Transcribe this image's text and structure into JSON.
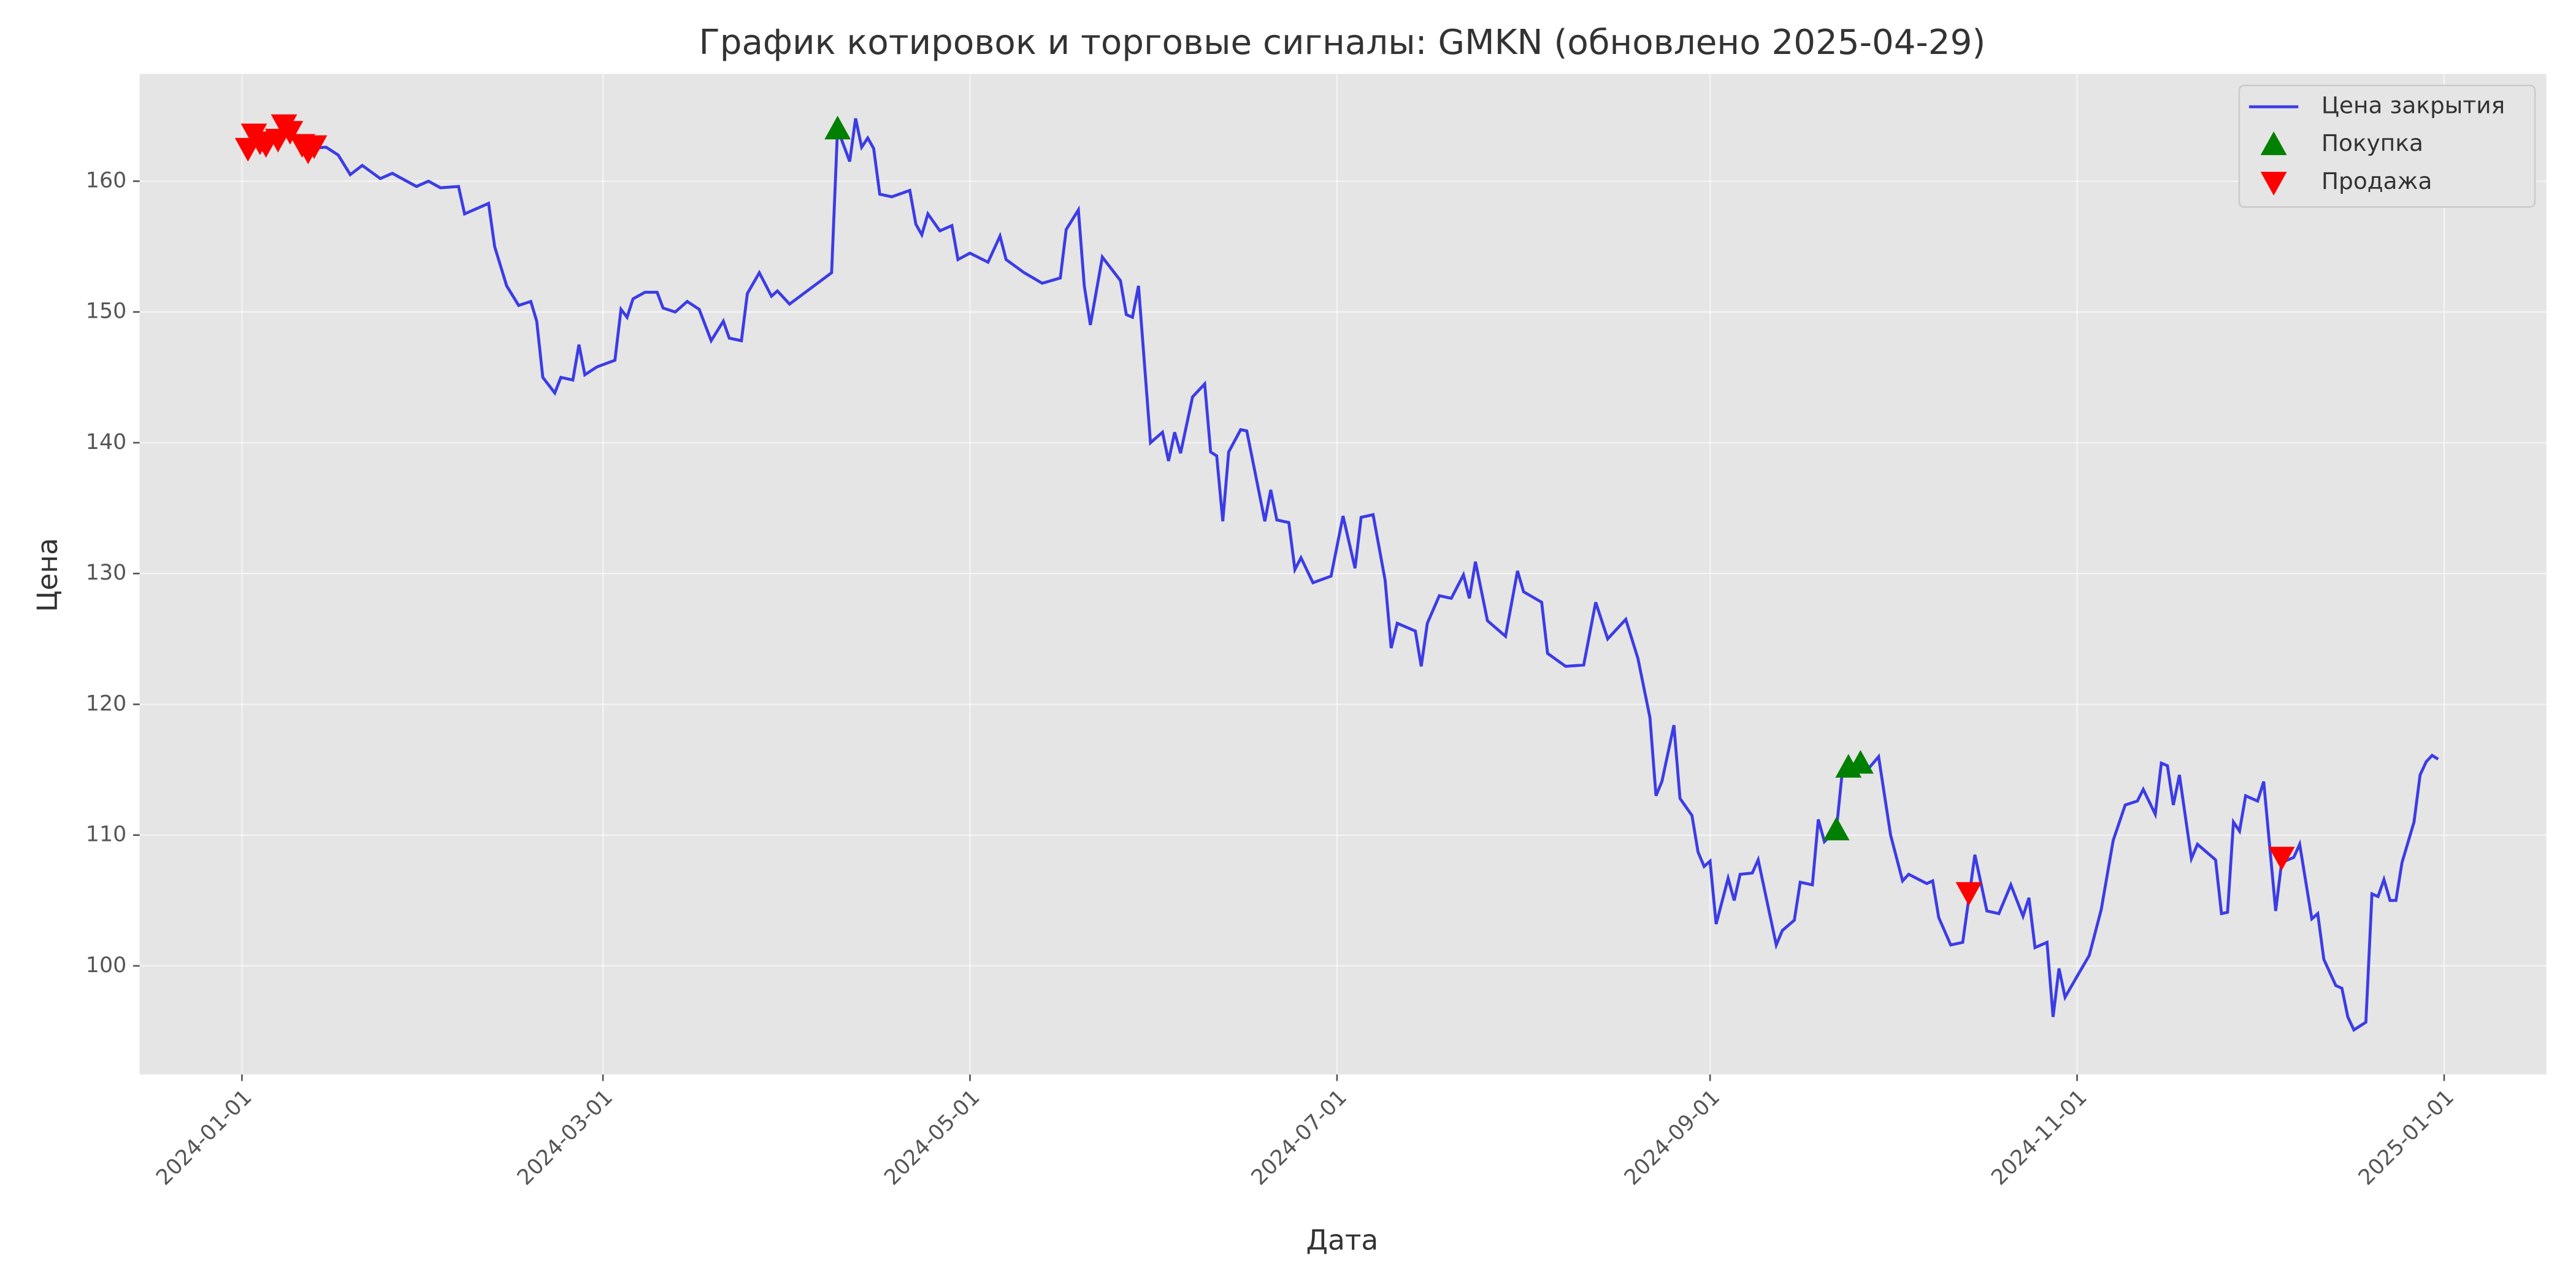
{
  "chart_data": {
    "type": "line",
    "title": "График котировок и торговые сигналы: GMKN (обновлено 2025-04-29)",
    "xlabel": "Дата",
    "ylabel": "Цена",
    "xlim": [
      "2023-12-15",
      "2025-01-18"
    ],
    "xticks": [
      "2024-01-01",
      "2024-03-01",
      "2024-05-01",
      "2024-07-01",
      "2024-09-01",
      "2024-11-01",
      "2025-01-01"
    ],
    "ylim": [
      91.7,
      168.2
    ],
    "yticks": [
      100,
      110,
      120,
      130,
      140,
      150,
      160
    ],
    "grid": true,
    "legend": "upper right",
    "x": [
      "2024-01-02",
      "2024-01-03",
      "2024-01-04",
      "2024-01-05",
      "2024-01-08",
      "2024-01-09",
      "2024-01-11",
      "2024-01-12",
      "2024-01-15",
      "2024-01-17",
      "2024-01-19",
      "2024-01-21",
      "2024-01-24",
      "2024-01-26",
      "2024-01-30",
      "2024-02-01",
      "2024-02-03",
      "2024-02-06",
      "2024-02-07",
      "2024-02-11",
      "2024-02-12",
      "2024-02-14",
      "2024-02-16",
      "2024-02-18",
      "2024-02-19",
      "2024-02-20",
      "2024-02-22",
      "2024-02-23",
      "2024-02-25",
      "2024-02-26",
      "2024-02-27",
      "2024-02-29",
      "2024-03-03",
      "2024-03-04",
      "2024-03-05",
      "2024-03-06",
      "2024-03-08",
      "2024-03-10",
      "2024-03-11",
      "2024-03-13",
      "2024-03-15",
      "2024-03-17",
      "2024-03-19",
      "2024-03-21",
      "2024-03-22",
      "2024-03-24",
      "2024-03-25",
      "2024-03-27",
      "2024-03-29",
      "2024-03-30",
      "2024-04-01",
      "2024-04-08",
      "2024-04-09",
      "2024-04-11",
      "2024-04-12",
      "2024-04-13",
      "2024-04-14",
      "2024-04-15",
      "2024-04-16",
      "2024-04-18",
      "2024-04-21",
      "2024-04-22",
      "2024-04-23",
      "2024-04-24",
      "2024-04-26",
      "2024-04-28",
      "2024-04-29",
      "2024-05-01",
      "2024-05-04",
      "2024-05-06",
      "2024-05-07",
      "2024-05-10",
      "2024-05-13",
      "2024-05-16",
      "2024-05-17",
      "2024-05-19",
      "2024-05-20",
      "2024-05-21",
      "2024-05-23",
      "2024-05-26",
      "2024-05-27",
      "2024-05-28",
      "2024-05-29",
      "2024-05-31",
      "2024-06-02",
      "2024-06-03",
      "2024-06-04",
      "2024-06-05",
      "2024-06-07",
      "2024-06-09",
      "2024-06-10",
      "2024-06-11",
      "2024-06-12",
      "2024-06-13",
      "2024-06-15",
      "2024-06-16",
      "2024-06-19",
      "2024-06-20",
      "2024-06-21",
      "2024-06-23",
      "2024-06-24",
      "2024-06-25",
      "2024-06-27",
      "2024-06-30",
      "2024-07-02",
      "2024-07-04",
      "2024-07-05",
      "2024-07-07",
      "2024-07-09",
      "2024-07-10",
      "2024-07-11",
      "2024-07-14",
      "2024-07-15",
      "2024-07-16",
      "2024-07-18",
      "2024-07-20",
      "2024-07-22",
      "2024-07-23",
      "2024-07-24",
      "2024-07-26",
      "2024-07-29",
      "2024-07-31",
      "2024-08-01",
      "2024-08-04",
      "2024-08-05",
      "2024-08-08",
      "2024-08-11",
      "2024-08-13",
      "2024-08-15",
      "2024-08-18",
      "2024-08-20",
      "2024-08-22",
      "2024-08-23",
      "2024-08-24",
      "2024-08-26",
      "2024-08-27",
      "2024-08-29",
      "2024-08-30",
      "2024-08-31",
      "2024-09-01",
      "2024-09-02",
      "2024-09-04",
      "2024-09-05",
      "2024-09-06",
      "2024-09-08",
      "2024-09-09",
      "2024-09-12",
      "2024-09-13",
      "2024-09-15",
      "2024-09-16",
      "2024-09-18",
      "2024-09-19",
      "2024-09-20",
      "2024-09-22",
      "2024-09-23",
      "2024-09-25",
      "2024-09-27",
      "2024-09-29",
      "2024-10-01",
      "2024-10-03",
      "2024-10-04",
      "2024-10-07",
      "2024-10-08",
      "2024-10-09",
      "2024-10-11",
      "2024-10-13",
      "2024-10-15",
      "2024-10-17",
      "2024-10-19",
      "2024-10-21",
      "2024-10-23",
      "2024-10-24",
      "2024-10-25",
      "2024-10-27",
      "2024-10-28",
      "2024-10-29",
      "2024-10-30",
      "2024-11-01",
      "2024-11-03",
      "2024-11-05",
      "2024-11-07",
      "2024-11-09",
      "2024-11-11",
      "2024-11-12",
      "2024-11-14",
      "2024-11-15",
      "2024-11-16",
      "2024-11-17",
      "2024-11-18",
      "2024-11-20",
      "2024-11-21",
      "2024-11-24",
      "2024-11-25",
      "2024-11-26",
      "2024-11-27",
      "2024-11-28",
      "2024-11-29",
      "2024-12-01",
      "2024-12-02",
      "2024-12-04",
      "2024-12-05",
      "2024-12-07",
      "2024-12-08",
      "2024-12-10",
      "2024-12-11",
      "2024-12-12",
      "2024-12-14",
      "2024-12-15",
      "2024-12-16",
      "2024-12-17",
      "2024-12-19",
      "2024-12-20",
      "2024-12-21",
      "2024-12-22",
      "2024-12-23",
      "2024-12-24",
      "2024-12-25",
      "2024-12-27",
      "2024-12-28",
      "2024-12-29",
      "2024-12-30",
      "2024-12-31"
    ],
    "series": [
      {
        "name": "Цена закрытия",
        "color": "#3c3ce6",
        "values": [
          162.5,
          163.6,
          163,
          162.8,
          164,
          163.8,
          162.8,
          162.5,
          162.6,
          162,
          160.5,
          161.2,
          160.2,
          160.6,
          159.6,
          160,
          159.5,
          159.6,
          157.5,
          158.3,
          155,
          152,
          150.5,
          150.8,
          149.3,
          145,
          143.8,
          145,
          144.8,
          147.5,
          145.2,
          145.8,
          146.3,
          150.2,
          149.6,
          151,
          151.5,
          151.5,
          150.3,
          150,
          150.8,
          150.2,
          147.8,
          149.3,
          148,
          147.8,
          151.4,
          153,
          151.2,
          151.6,
          150.6,
          153,
          164,
          161.5,
          164.8,
          162.6,
          163.3,
          162.5,
          159,
          158.8,
          159.3,
          156.7,
          155.9,
          157.5,
          156.2,
          156.6,
          154,
          154.5,
          153.8,
          155.8,
          154,
          153,
          152.2,
          152.6,
          156.3,
          157.8,
          152,
          149,
          154.2,
          152.4,
          149.8,
          149.6,
          152,
          140,
          140.8,
          138.6,
          140.8,
          139.2,
          143.5,
          144.5,
          139.3,
          139,
          134,
          139.3,
          141,
          140.9,
          134,
          136.4,
          134.1,
          133.9,
          130.3,
          131.2,
          129.3,
          129.8,
          134.4,
          130.4,
          134.3,
          134.5,
          129.5,
          124.3,
          126.2,
          125.6,
          122.9,
          126.2,
          128.3,
          128.1,
          129.9,
          128.1,
          130.9,
          126.4,
          125.2,
          130.2,
          128.6,
          127.8,
          123.9,
          122.9,
          123,
          127.8,
          125,
          126.5,
          123.5,
          119,
          113,
          114.1,
          118.4,
          112.8,
          111.5,
          108.7,
          107.6,
          108,
          103.2,
          106.7,
          105,
          107,
          107.1,
          108.1,
          101.6,
          102.7,
          103.5,
          106.4,
          106.2,
          111.2,
          109.5,
          110.4,
          115,
          114.9,
          114.9,
          116,
          110,
          106.5,
          107,
          106.3,
          106.5,
          103.7,
          101.6,
          101.8,
          108.5,
          104.2,
          104,
          106.2,
          103.8,
          105.2,
          101.4,
          101.8,
          96.1,
          99.8,
          97.6,
          99.2,
          100.8,
          104.3,
          109.6,
          112.3,
          112.6,
          113.5,
          111.6,
          115.5,
          115.3,
          112.3,
          114.6,
          108.2,
          109.3,
          108.1,
          104,
          104.1,
          111,
          110.3,
          113,
          112.6,
          114.1,
          104.2,
          107.9,
          108.3,
          109.3,
          103.6,
          104,
          100.5,
          98.5,
          98.3,
          96.1,
          95.1,
          95.7,
          105.5,
          105.3,
          106.6,
          105,
          105,
          107.9,
          111,
          114.6,
          115.6,
          116.1,
          115.8
        ]
      },
      {
        "name": "Покупка",
        "type": "scatter",
        "marker": "^",
        "color": "#008000",
        "x": [
          "2024-04-09",
          "2024-09-22",
          "2024-09-24",
          "2024-09-26"
        ],
        "values": [
          164,
          110.4,
          115.2,
          115.5
        ]
      },
      {
        "name": "Продажа",
        "type": "scatter",
        "marker": "v",
        "color": "#ff0000",
        "x": [
          "2024-01-02",
          "2024-01-03",
          "2024-01-04",
          "2024-01-05",
          "2024-01-07",
          "2024-01-08",
          "2024-01-09",
          "2024-01-11",
          "2024-01-12",
          "2024-01-13",
          "2024-10-14",
          "2024-12-05"
        ],
        "values": [
          162.5,
          163.6,
          163,
          162.8,
          163.2,
          164.3,
          163.8,
          162.8,
          162.3,
          162.7,
          105.6,
          108.3
        ]
      }
    ]
  }
}
